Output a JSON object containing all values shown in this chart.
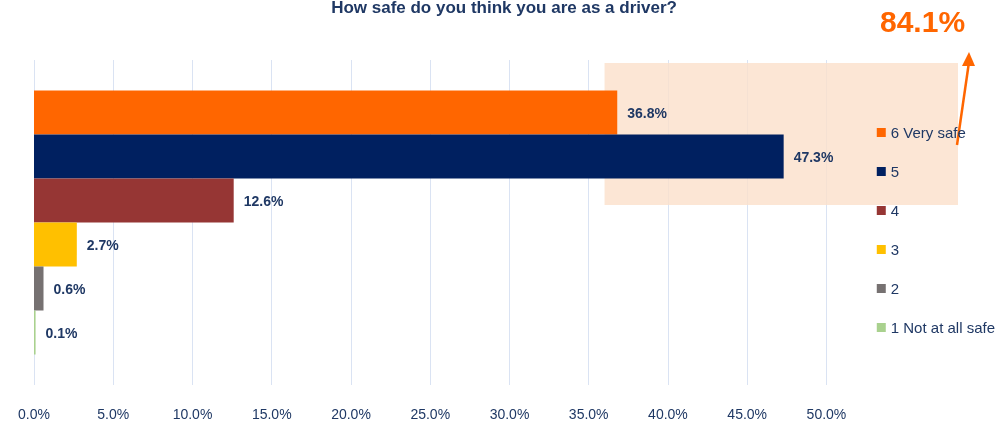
{
  "chart_data": {
    "type": "bar",
    "orientation": "horizontal",
    "title": "How safe do you think you are as a driver?",
    "categories": [
      null
    ],
    "series": [
      {
        "name": "6 Very safe",
        "color": "#ff6600",
        "values": [
          36.8
        ],
        "value_labels": [
          "36.8%"
        ]
      },
      {
        "name": "5",
        "color": "#002060",
        "values": [
          47.3
        ],
        "value_labels": [
          "47.3%"
        ]
      },
      {
        "name": "4",
        "color": "#963634",
        "values": [
          12.6
        ],
        "value_labels": [
          "12.6%"
        ]
      },
      {
        "name": "3",
        "color": "#ffc000",
        "values": [
          2.7
        ],
        "value_labels": [
          "2.7%"
        ]
      },
      {
        "name": "2",
        "color": "#767171",
        "values": [
          0.6
        ],
        "value_labels": [
          "0.6%"
        ]
      },
      {
        "name": "1 Not at all safe",
        "color": "#a9d18e",
        "values": [
          0.1
        ],
        "value_labels": [
          "0.1%"
        ]
      }
    ],
    "xlim": [
      0,
      58.3
    ],
    "xticks": [
      {
        "value": 0,
        "label": "0.0%"
      },
      {
        "value": 5,
        "label": "5.0%"
      },
      {
        "value": 10,
        "label": "10.0%"
      },
      {
        "value": 15,
        "label": "15.0%"
      },
      {
        "value": 20,
        "label": "20.0%"
      },
      {
        "value": 25,
        "label": "25.0%"
      },
      {
        "value": 30,
        "label": "30.0%"
      },
      {
        "value": 35,
        "label": "35.0%"
      },
      {
        "value": 40,
        "label": "40.0%"
      },
      {
        "value": 45,
        "label": "45.0%"
      },
      {
        "value": 50,
        "label": "50.0%"
      }
    ],
    "bands": [
      {
        "axis": "x",
        "from": 36,
        "to": 58.3,
        "label": "84.1%",
        "color": "#fbe0cb"
      }
    ],
    "grid": "x",
    "legend": "right"
  }
}
